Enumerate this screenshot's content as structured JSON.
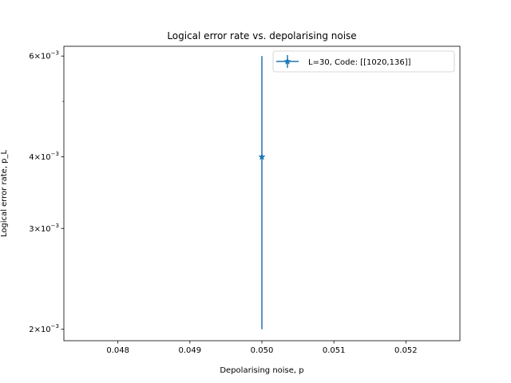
{
  "chart_data": {
    "type": "line",
    "title": "Logical error rate vs. depolarising noise",
    "xlabel": "Depolarising noise, p",
    "ylabel": "Logical error rate, p_L",
    "xlim": [
      0.04725,
      0.05275
    ],
    "ylim": [
      0.00191,
      0.00624
    ],
    "yscale": "log",
    "x_ticks": [
      {
        "value": 0.048,
        "label": "0.048"
      },
      {
        "value": 0.049,
        "label": "0.049"
      },
      {
        "value": 0.05,
        "label": "0.050"
      },
      {
        "value": 0.051,
        "label": "0.051"
      },
      {
        "value": 0.052,
        "label": "0.052"
      }
    ],
    "y_major_ticks": [
      {
        "value": 0.002,
        "mantissa": "2",
        "exponent": "−3"
      },
      {
        "value": 0.003,
        "mantissa": "3",
        "exponent": "−3"
      },
      {
        "value": 0.004,
        "mantissa": "4",
        "exponent": "−3"
      },
      {
        "value": 0.006,
        "mantissa": "6",
        "exponent": "−3"
      }
    ],
    "y_minor_ticks": [
      0.005
    ],
    "legend_position": "top-right",
    "grid": false,
    "series": [
      {
        "name": "L=30, Code: [[1020,136]]",
        "color": "#1f77b4",
        "marker": "star",
        "points": [
          {
            "x": 0.05,
            "y": 0.004,
            "y_lower": 0.002,
            "y_upper": 0.006
          }
        ]
      }
    ]
  }
}
